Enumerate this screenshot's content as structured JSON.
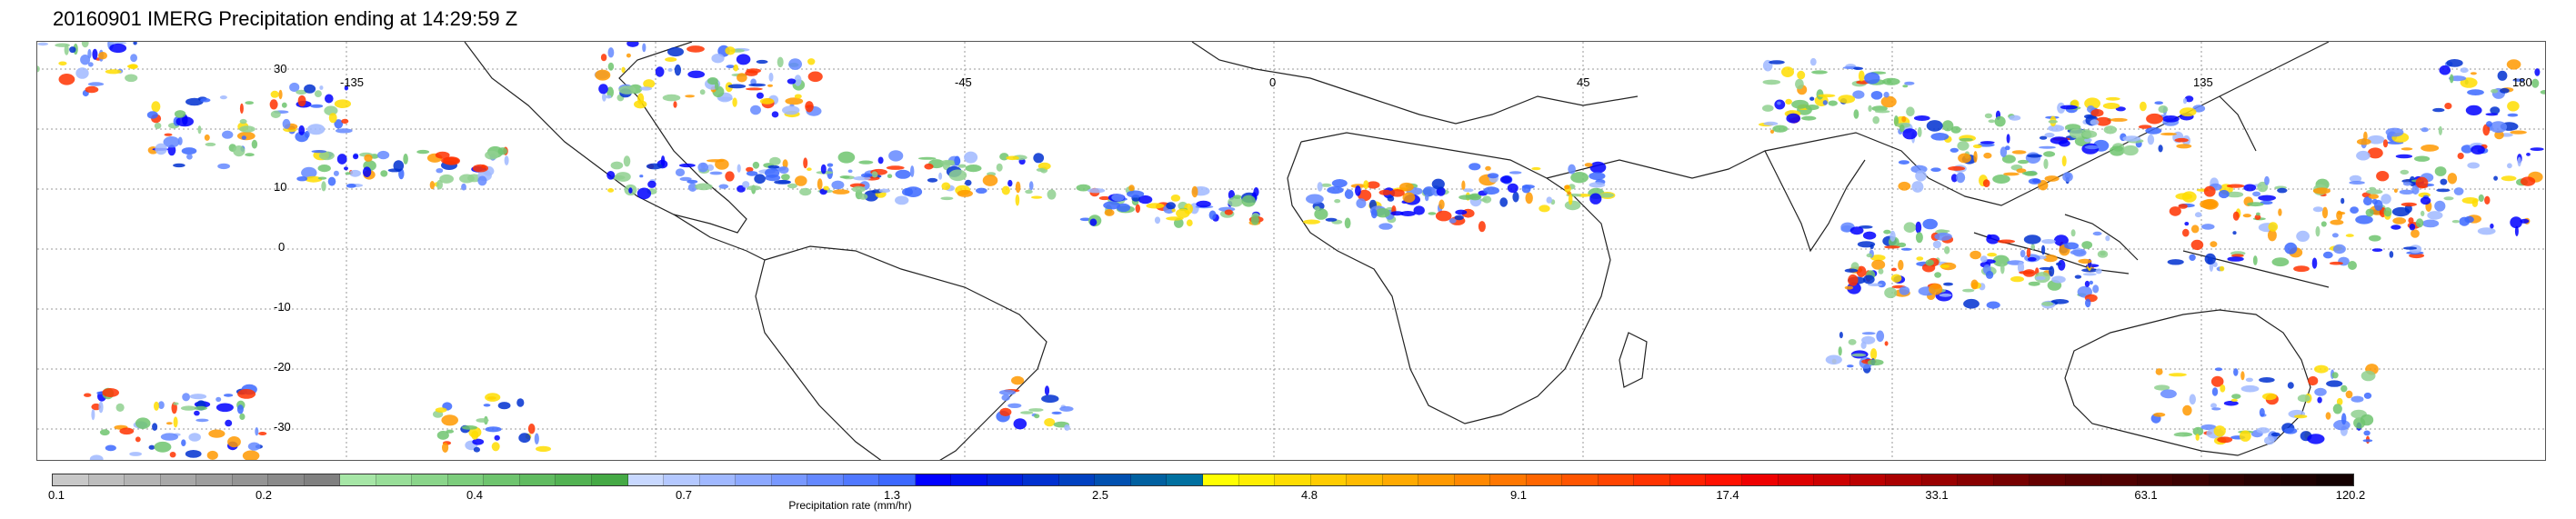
{
  "title": "20160901 IMERG Precipitation ending at 14:29:59 Z",
  "map": {
    "lon_labels": [
      "-135",
      "-45",
      "0",
      "45",
      "135",
      "180"
    ],
    "lat_labels": [
      "30",
      "10",
      "0",
      "-10",
      "-20",
      "-30"
    ],
    "grid": true
  },
  "colorbar": {
    "title": "Precipitation rate (mm/hr)",
    "tick_labels": [
      "0.1",
      "0.2",
      "0.4",
      "0.7",
      "1.3",
      "2.5",
      "4.8",
      "9.1",
      "17.4",
      "33.1",
      "63.1",
      "120.2"
    ],
    "colors": [
      "#c8c8c8",
      "#bdbdbd",
      "#b3b3b3",
      "#a8a8a8",
      "#9e9e9e",
      "#949494",
      "#8a8a8a",
      "#808080",
      "#a6e6a6",
      "#98de98",
      "#8ad58a",
      "#7ccd7c",
      "#6ec46e",
      "#60bb60",
      "#52b252",
      "#45a945",
      "#c8d8ff",
      "#b4c8ff",
      "#a0b8ff",
      "#8ca8ff",
      "#7898ff",
      "#6488ff",
      "#5078ff",
      "#3c68ff",
      "#0000ff",
      "#0010f0",
      "#0020e0",
      "#0030d0",
      "#0040c0",
      "#0050b0",
      "#0060a0",
      "#0070a0",
      "#ffff00",
      "#ffee00",
      "#ffdd00",
      "#ffcc00",
      "#ffbb00",
      "#ffaa00",
      "#ff9900",
      "#ff8800",
      "#ff7700",
      "#ff6600",
      "#ff5500",
      "#ff4400",
      "#ff3300",
      "#ff2200",
      "#ff1100",
      "#ee0000",
      "#dd0000",
      "#cc0000",
      "#bb0000",
      "#aa0000",
      "#990000",
      "#880000",
      "#770000",
      "#660000",
      "#5a0000",
      "#500000",
      "#460000",
      "#3c0000",
      "#320000",
      "#280000",
      "#1e0000",
      "#140000"
    ]
  }
}
